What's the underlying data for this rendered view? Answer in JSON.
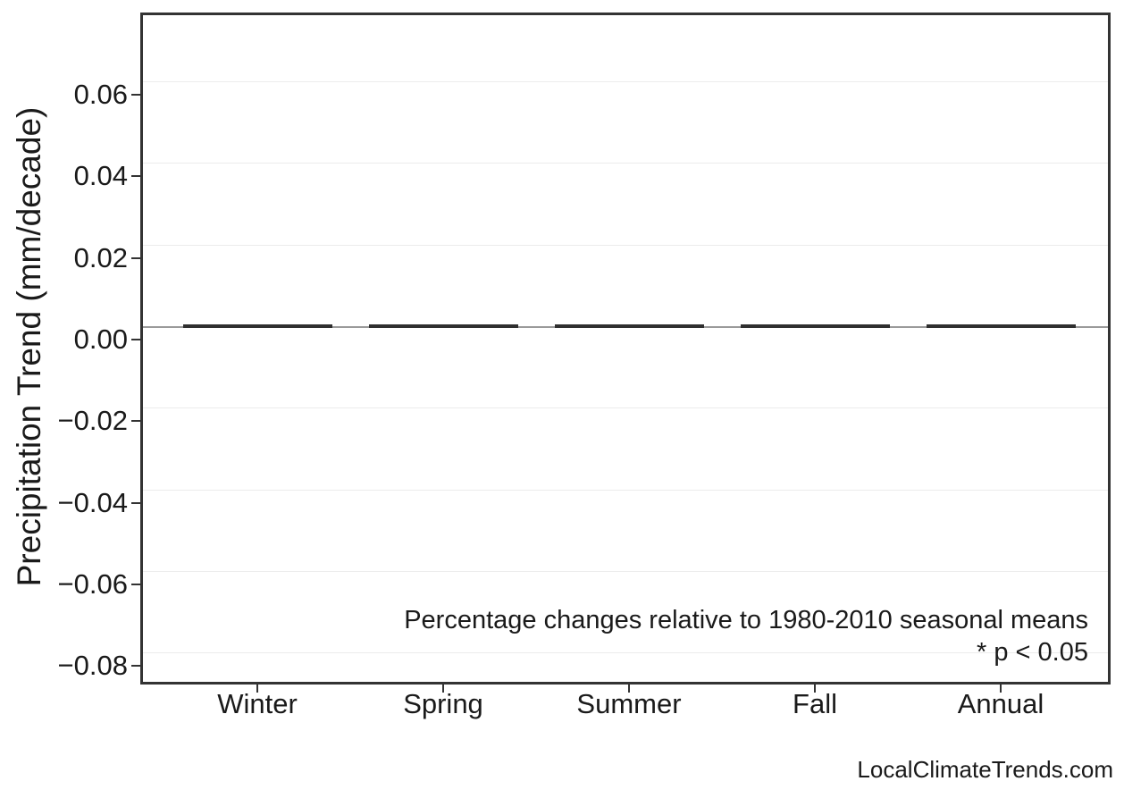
{
  "chart_data": {
    "type": "bar",
    "categories": [
      "Winter",
      "Spring",
      "Summer",
      "Fall",
      "Annual"
    ],
    "values": [
      0.0,
      0.0,
      0.0,
      0.0,
      0.0
    ],
    "ylabel": "Precipitation Trend (mm/decade)",
    "ylim": [
      -0.088,
      0.077
    ],
    "yticks": [
      0.06,
      0.04,
      0.02,
      0,
      -0.02,
      -0.04,
      -0.06,
      -0.08
    ],
    "ytick_labels": [
      "0.06",
      "0.04",
      "0.02",
      "0.00",
      "−0.02",
      "−0.04",
      "−0.06",
      "−0.08"
    ],
    "grid": "horizontal-major-only",
    "legend_position": "none",
    "zero_reference_line": 0,
    "annotations": [
      "Percentage changes relative to 1980-2010 seasonal means",
      "* p < 0.05"
    ]
  },
  "footer": {
    "watermark": "LocalClimateTrends.com"
  },
  "colors": {
    "panel_border": "#333333",
    "gridline": "#ececec",
    "zero_line": "#9a9a9a",
    "bar": "#2f2f2f",
    "text": "#1a1a1a"
  }
}
